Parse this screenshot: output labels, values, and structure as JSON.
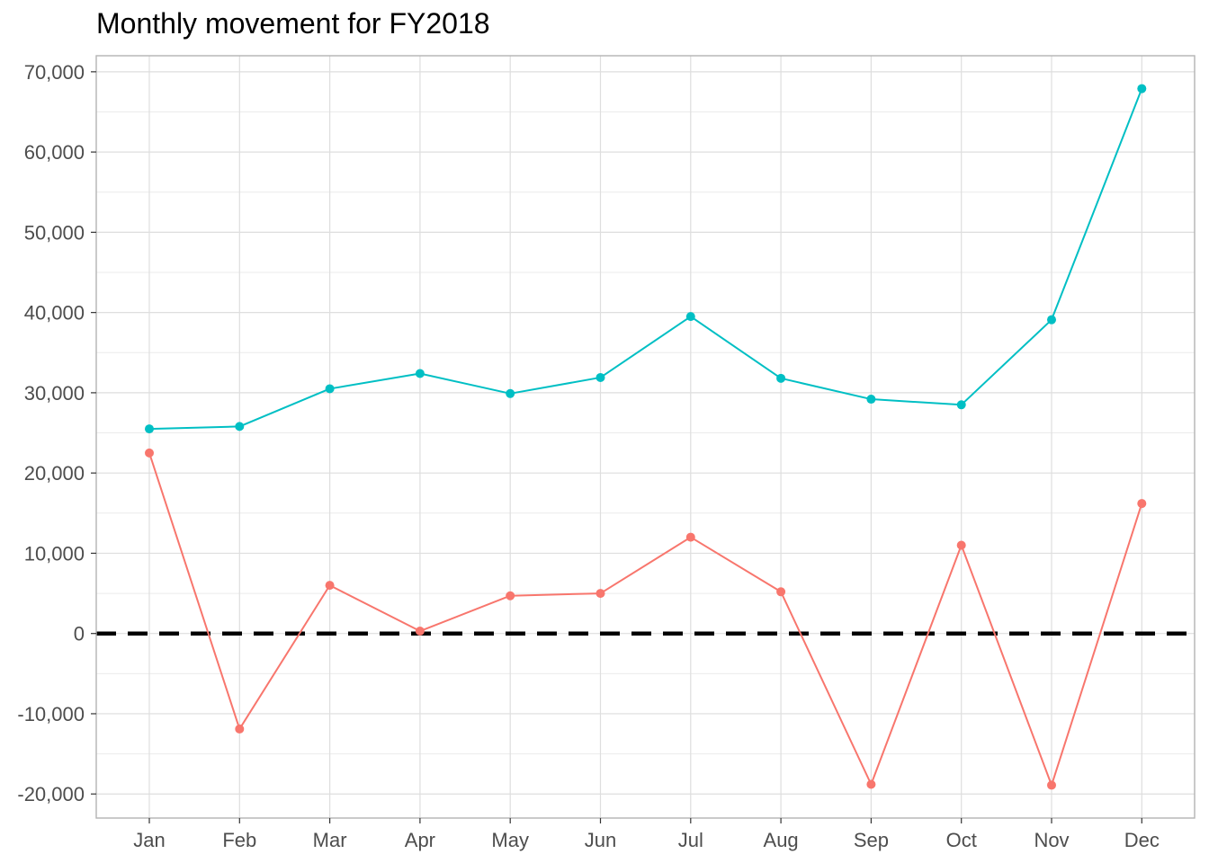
{
  "chart_data": {
    "type": "line",
    "title": "Monthly movement for FY2018",
    "xlabel": "",
    "ylabel": "",
    "categories": [
      "Jan",
      "Feb",
      "Mar",
      "Apr",
      "May",
      "Jun",
      "Jul",
      "Aug",
      "Sep",
      "Oct",
      "Nov",
      "Dec"
    ],
    "y_ticks": [
      -20000,
      -10000,
      0,
      10000,
      20000,
      30000,
      40000,
      50000,
      60000,
      70000
    ],
    "y_tick_labels": [
      "-20,000",
      "-10,000",
      "0",
      "10,000",
      "20,000",
      "30,000",
      "40,000",
      "50,000",
      "60,000",
      "70,000"
    ],
    "ylim": [
      -23000,
      72000
    ],
    "grid": true,
    "legend": "none",
    "reference_line": {
      "y": 0,
      "style": "dashed",
      "color": "#000000"
    },
    "series": [
      {
        "color": "#00BFC4",
        "values": [
          25500,
          25800,
          30500,
          32400,
          29900,
          31900,
          39500,
          31800,
          29200,
          28500,
          39100,
          67900
        ]
      },
      {
        "color": "#F8766D",
        "values": [
          22500,
          -11900,
          6000,
          300,
          4700,
          5000,
          12000,
          5200,
          -18800,
          11000,
          -18900,
          16200
        ]
      }
    ]
  }
}
